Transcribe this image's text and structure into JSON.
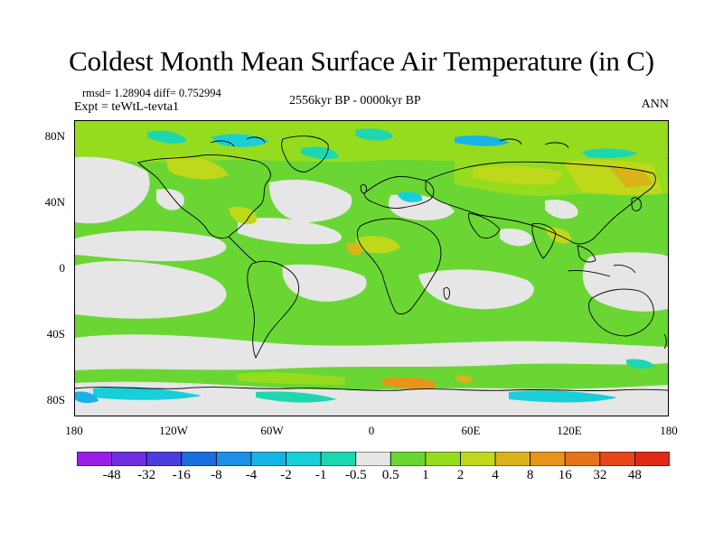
{
  "title": "Coldest Month Mean Surface Air Temperature (in C)",
  "stats_text": "rmsd= 1.28904  diff= 0.752994",
  "expt_text": "Expt = teWtL-tevta1",
  "period_text": "2556kyr BP - 0000kyr BP",
  "season_text": "ANN",
  "map": {
    "projection": "cylindrical equidistant",
    "lon_range": [
      -180,
      180
    ],
    "lat_range": [
      -90,
      90
    ],
    "y_tick_labels": [
      "80N",
      "40N",
      "0",
      "40S",
      "80S"
    ],
    "x_tick_labels": [
      "180",
      "120W",
      "60W",
      "0",
      "60E",
      "120E",
      "180"
    ]
  },
  "colorbar": {
    "labels": [
      "-48",
      "-32",
      "-16",
      "-8",
      "-4",
      "-2",
      "-1",
      "-0.5",
      "0.5",
      "1",
      "2",
      "4",
      "8",
      "16",
      "32",
      "48"
    ],
    "colors": [
      "#9a1fe6",
      "#6e2ee0",
      "#4a3ee0",
      "#1c6de0",
      "#1b90e6",
      "#16b4e6",
      "#18cfd8",
      "#1ed6b0",
      "#e6e6e6",
      "#6ad633",
      "#96dc1e",
      "#c0d81a",
      "#d8b41a",
      "#e6951a",
      "#e6721a",
      "#e6461a",
      "#e02814"
    ]
  },
  "palette": {
    "neutral": "#e6e6e6",
    "warm_1": "#6ad633",
    "warm_2": "#96dc1e",
    "warm_3": "#c0d81a",
    "warm_4": "#d8b41a",
    "warm_5": "#e6951a",
    "warm_6": "#e6721a",
    "cool_1": "#1ed6b0",
    "cool_2": "#18cfd8",
    "cool_3": "#16b4e6"
  }
}
